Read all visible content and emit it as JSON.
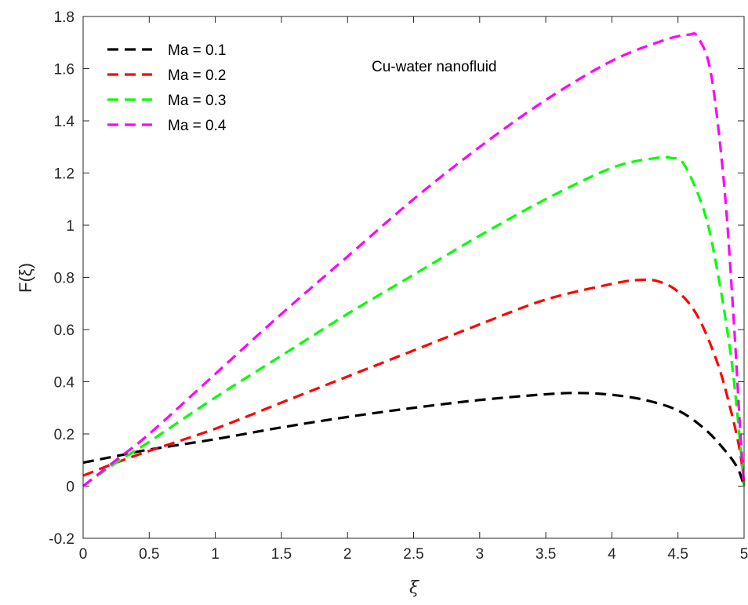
{
  "chart_data": {
    "type": "line",
    "ylabel": "F(ξ)",
    "xlabel": "ξ",
    "annotation": "Cu-water nanofluid",
    "xlim": [
      0,
      5
    ],
    "ylim": [
      -0.2,
      1.8
    ],
    "x_ticks": [
      "0",
      "0.5",
      "1",
      "1.5",
      "2",
      "2.5",
      "3",
      "3.5",
      "4",
      "4.5",
      "5"
    ],
    "y_ticks": [
      "-0.2",
      "0",
      "0.2",
      "0.4",
      "0.6",
      "0.8",
      "1",
      "1.2",
      "1.4",
      "1.6",
      "1.8"
    ],
    "grid": false,
    "legend_position": "top-left",
    "series": [
      {
        "name": "Ma = 0.1",
        "color": "#000000",
        "x": [
          0,
          0.25,
          0.5,
          1,
          1.5,
          2,
          2.5,
          3,
          3.5,
          3.75,
          4,
          4.25,
          4.5,
          4.7,
          4.85,
          4.95,
          5
        ],
        "y": [
          0.09,
          0.115,
          0.14,
          0.18,
          0.225,
          0.265,
          0.3,
          0.33,
          0.352,
          0.357,
          0.35,
          0.33,
          0.29,
          0.22,
          0.14,
          0.07,
          0.0
        ]
      },
      {
        "name": "Ma = 0.2",
        "color": "#ff0000",
        "x": [
          0,
          0.25,
          0.5,
          1,
          1.5,
          2,
          2.5,
          3,
          3.5,
          4,
          4.2,
          4.35,
          4.5,
          4.65,
          4.8,
          4.9,
          4.97,
          5
        ],
        "y": [
          0.04,
          0.09,
          0.135,
          0.22,
          0.32,
          0.42,
          0.52,
          0.62,
          0.715,
          0.775,
          0.79,
          0.785,
          0.745,
          0.65,
          0.47,
          0.29,
          0.13,
          0.0
        ]
      },
      {
        "name": "Ma = 0.3",
        "color": "#00ff00",
        "x": [
          0,
          0.25,
          0.5,
          1,
          1.5,
          2,
          2.5,
          3,
          3.5,
          4,
          4.3,
          4.45,
          4.55,
          4.7,
          4.8,
          4.9,
          4.96,
          5
        ],
        "y": [
          0.0,
          0.09,
          0.17,
          0.34,
          0.5,
          0.66,
          0.81,
          0.96,
          1.1,
          1.22,
          1.255,
          1.258,
          1.23,
          1.05,
          0.82,
          0.5,
          0.22,
          0.0
        ]
      },
      {
        "name": "Ma = 0.4",
        "color": "#ff00ff",
        "x": [
          0,
          0.25,
          0.5,
          1,
          1.5,
          2,
          2.5,
          3,
          3.5,
          4,
          4.4,
          4.58,
          4.65,
          4.75,
          4.85,
          4.92,
          4.97,
          5
        ],
        "y": [
          0.0,
          0.1,
          0.2,
          0.43,
          0.66,
          0.88,
          1.1,
          1.3,
          1.48,
          1.63,
          1.71,
          1.73,
          1.72,
          1.58,
          1.15,
          0.65,
          0.22,
          0.0
        ]
      }
    ]
  }
}
